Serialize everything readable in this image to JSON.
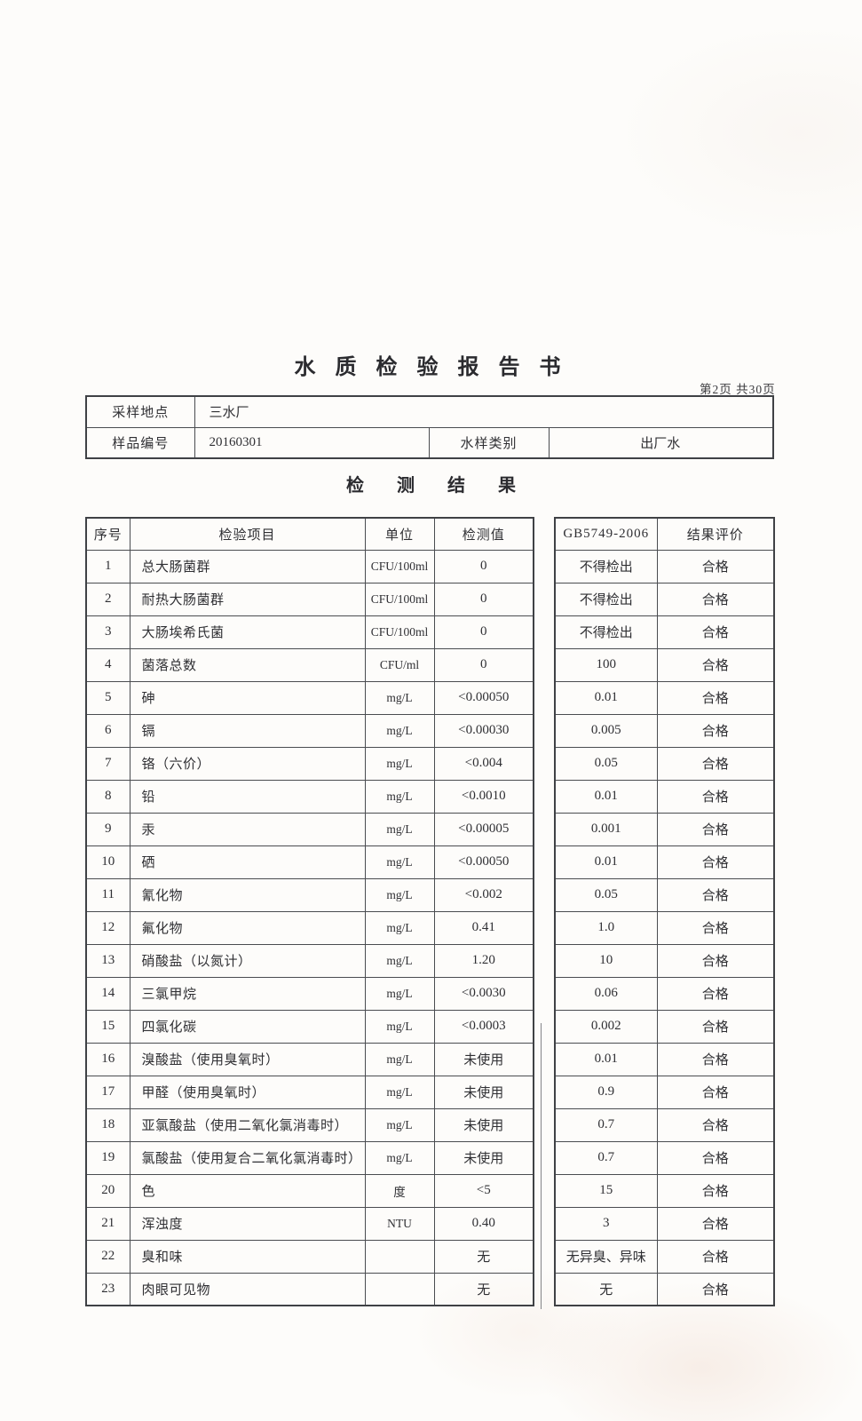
{
  "page": {
    "title": "水 质 检 验 报 告 书",
    "page_indicator": "第2页 共30页",
    "section_heading": "检 测 结 果"
  },
  "sample_info": {
    "location_label": "采样地点",
    "location_value": "三水厂",
    "sample_id_label": "样品编号",
    "sample_id_value": "20160301",
    "water_type_label": "水样类别",
    "water_type_value": "出厂水"
  },
  "results_table": {
    "headers": {
      "no": "序号",
      "item": "检验项目",
      "unit": "单位",
      "value": "检测值",
      "standard": "GB5749-2006",
      "evaluation": "结果评价"
    },
    "rows": [
      {
        "no": "1",
        "item": "总大肠菌群",
        "unit": "CFU/100ml",
        "value": "0",
        "standard": "不得检出",
        "evaluation": "合格"
      },
      {
        "no": "2",
        "item": "耐热大肠菌群",
        "unit": "CFU/100ml",
        "value": "0",
        "standard": "不得检出",
        "evaluation": "合格"
      },
      {
        "no": "3",
        "item": "大肠埃希氏菌",
        "unit": "CFU/100ml",
        "value": "0",
        "standard": "不得检出",
        "evaluation": "合格"
      },
      {
        "no": "4",
        "item": "菌落总数",
        "unit": "CFU/ml",
        "value": "0",
        "standard": "100",
        "evaluation": "合格"
      },
      {
        "no": "5",
        "item": "砷",
        "unit": "mg/L",
        "value": "<0.00050",
        "standard": "0.01",
        "evaluation": "合格"
      },
      {
        "no": "6",
        "item": "镉",
        "unit": "mg/L",
        "value": "<0.00030",
        "standard": "0.005",
        "evaluation": "合格"
      },
      {
        "no": "7",
        "item": "铬（六价）",
        "unit": "mg/L",
        "value": "<0.004",
        "standard": "0.05",
        "evaluation": "合格"
      },
      {
        "no": "8",
        "item": "铅",
        "unit": "mg/L",
        "value": "<0.0010",
        "standard": "0.01",
        "evaluation": "合格"
      },
      {
        "no": "9",
        "item": "汞",
        "unit": "mg/L",
        "value": "<0.00005",
        "standard": "0.001",
        "evaluation": "合格"
      },
      {
        "no": "10",
        "item": "硒",
        "unit": "mg/L",
        "value": "<0.00050",
        "standard": "0.01",
        "evaluation": "合格"
      },
      {
        "no": "11",
        "item": "氰化物",
        "unit": "mg/L",
        "value": "<0.002",
        "standard": "0.05",
        "evaluation": "合格"
      },
      {
        "no": "12",
        "item": "氟化物",
        "unit": "mg/L",
        "value": "0.41",
        "standard": "1.0",
        "evaluation": "合格"
      },
      {
        "no": "13",
        "item": "硝酸盐（以氮计）",
        "unit": "mg/L",
        "value": "1.20",
        "standard": "10",
        "evaluation": "合格"
      },
      {
        "no": "14",
        "item": "三氯甲烷",
        "unit": "mg/L",
        "value": "<0.0030",
        "standard": "0.06",
        "evaluation": "合格"
      },
      {
        "no": "15",
        "item": "四氯化碳",
        "unit": "mg/L",
        "value": "<0.0003",
        "standard": "0.002",
        "evaluation": "合格"
      },
      {
        "no": "16",
        "item": "溴酸盐（使用臭氧时）",
        "unit": "mg/L",
        "value": "未使用",
        "standard": "0.01",
        "evaluation": "合格"
      },
      {
        "no": "17",
        "item": "甲醛（使用臭氧时）",
        "unit": "mg/L",
        "value": "未使用",
        "standard": "0.9",
        "evaluation": "合格"
      },
      {
        "no": "18",
        "item": "亚氯酸盐（使用二氧化氯消毒时）",
        "unit": "mg/L",
        "value": "未使用",
        "standard": "0.7",
        "evaluation": "合格"
      },
      {
        "no": "19",
        "item": "氯酸盐（使用复合二氧化氯消毒时）",
        "unit": "mg/L",
        "value": "未使用",
        "standard": "0.7",
        "evaluation": "合格"
      },
      {
        "no": "20",
        "item": "色",
        "unit": "度",
        "value": "<5",
        "standard": "15",
        "evaluation": "合格"
      },
      {
        "no": "21",
        "item": "浑浊度",
        "unit": "NTU",
        "value": "0.40",
        "standard": "3",
        "evaluation": "合格"
      },
      {
        "no": "22",
        "item": "臭和味",
        "unit": "",
        "value": "无",
        "standard": "无异臭、异味",
        "evaluation": "合格"
      },
      {
        "no": "23",
        "item": "肉眼可见物",
        "unit": "",
        "value": "无",
        "standard": "无",
        "evaluation": "合格"
      }
    ]
  }
}
